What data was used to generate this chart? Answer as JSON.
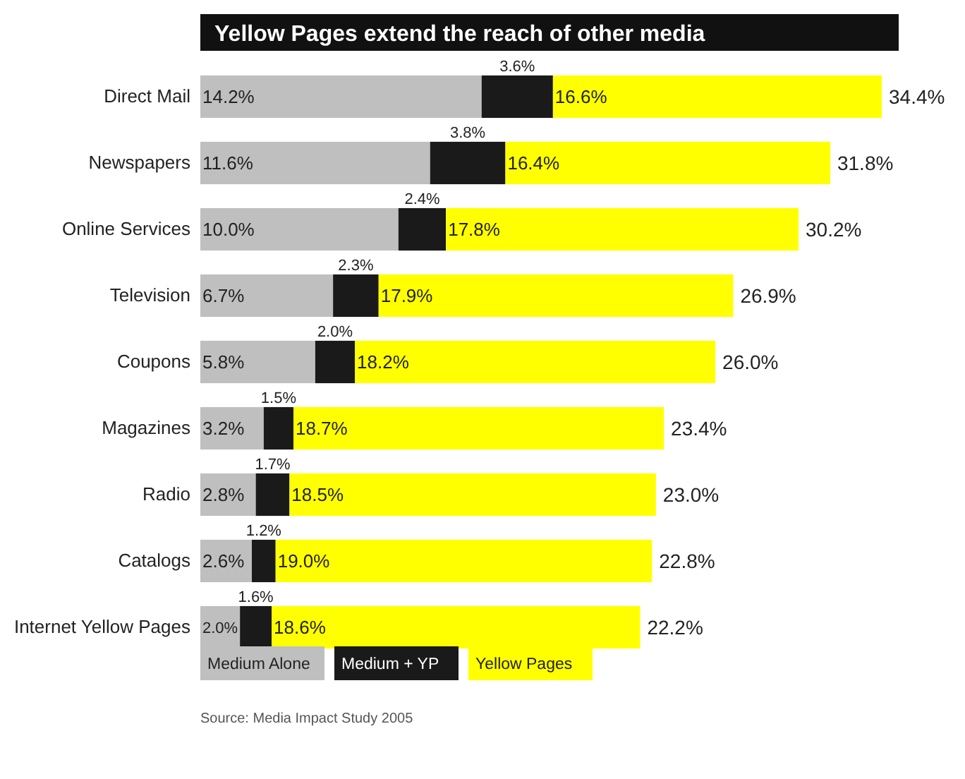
{
  "chart_data": {
    "type": "bar",
    "orientation": "horizontal",
    "stacked": true,
    "title": "Yellow Pages extend the reach of other media",
    "categories": [
      "Direct Mail",
      "Newspapers",
      "Online Services",
      "Television",
      "Coupons",
      "Magazines",
      "Radio",
      "Catalogs",
      "Internet Yellow Pages"
    ],
    "series": [
      {
        "name": "Medium Alone",
        "color": "#bfbfbf",
        "values": [
          14.2,
          11.6,
          10.0,
          6.7,
          5.8,
          3.2,
          2.8,
          2.6,
          2.0
        ],
        "value_labels": [
          "14.2%",
          "11.6%",
          "10.0%",
          "6.7%",
          "5.8%",
          "3.2%",
          "2.8%",
          "2.6%",
          "2.0%"
        ]
      },
      {
        "name": "Medium + YP",
        "color": "#1a1a1a",
        "values": [
          3.6,
          3.8,
          2.4,
          2.3,
          2.0,
          1.5,
          1.7,
          1.2,
          1.6
        ],
        "value_labels": [
          "3.6%",
          "3.8%",
          "2.4%",
          "2.3%",
          "2.0%",
          "1.5%",
          "1.7%",
          "1.2%",
          "1.6%"
        ]
      },
      {
        "name": "Yellow Pages",
        "color": "#ffff00",
        "values": [
          16.6,
          16.4,
          17.8,
          17.9,
          18.2,
          18.7,
          18.5,
          19.0,
          18.6
        ],
        "value_labels": [
          "16.6%",
          "16.4%",
          "17.8%",
          "17.9%",
          "18.2%",
          "18.7%",
          "18.5%",
          "19.0%",
          "18.6%"
        ]
      }
    ],
    "totals": [
      "34.4%",
      "31.8%",
      "30.2%",
      "26.9%",
      "26.0%",
      "23.4%",
      "23.0%",
      "22.8%",
      "22.2%"
    ],
    "legend": "bottom",
    "annotations": [
      "Source: Media Impact Study 2005"
    ]
  }
}
